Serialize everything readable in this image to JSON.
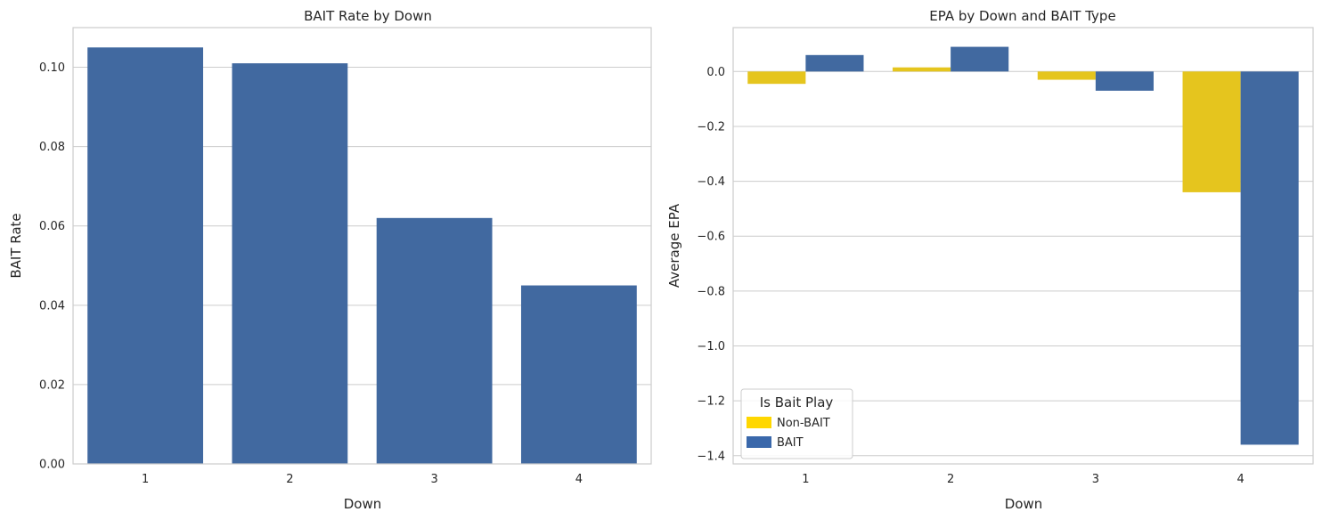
{
  "chart_data": [
    {
      "type": "bar",
      "title": "BAIT Rate by Down",
      "xlabel": "Down",
      "ylabel": "BAIT Rate",
      "categories": [
        "1",
        "2",
        "3",
        "4"
      ],
      "values": [
        0.105,
        0.101,
        0.062,
        0.045
      ],
      "ylim": [
        0,
        0.11
      ],
      "yticks": [
        "0.00",
        "0.02",
        "0.04",
        "0.06",
        "0.08",
        "0.10"
      ],
      "ytick_values": [
        0,
        0.02,
        0.04,
        0.06,
        0.08,
        0.1
      ],
      "grid": true,
      "color": "#4169a0"
    },
    {
      "type": "bar",
      "title": "EPA by Down and BAIT Type",
      "xlabel": "Down",
      "ylabel": "Average EPA",
      "categories": [
        "1",
        "2",
        "3",
        "4"
      ],
      "series": [
        {
          "name": "Non-BAIT",
          "values": [
            -0.045,
            0.015,
            -0.03,
            -0.44
          ],
          "color": "#e5c51e"
        },
        {
          "name": "BAIT",
          "values": [
            0.06,
            0.09,
            -0.07,
            -1.36
          ],
          "color": "#4169a0"
        }
      ],
      "ylim": [
        -1.43,
        0.16
      ],
      "yticks": [
        "−1.4",
        "−1.2",
        "−1.0",
        "−0.8",
        "−0.6",
        "−0.4",
        "−0.2",
        "0.0"
      ],
      "ytick_values": [
        -1.4,
        -1.2,
        -1.0,
        -0.8,
        -0.6,
        -0.4,
        -0.2,
        0.0
      ],
      "grid": true,
      "legend": {
        "title": "Is Bait Play",
        "placement": "lower-left",
        "entries": [
          {
            "label": "Non-BAIT",
            "color": "#ffd700"
          },
          {
            "label": "BAIT",
            "color": "#3a68ab"
          }
        ]
      }
    }
  ]
}
